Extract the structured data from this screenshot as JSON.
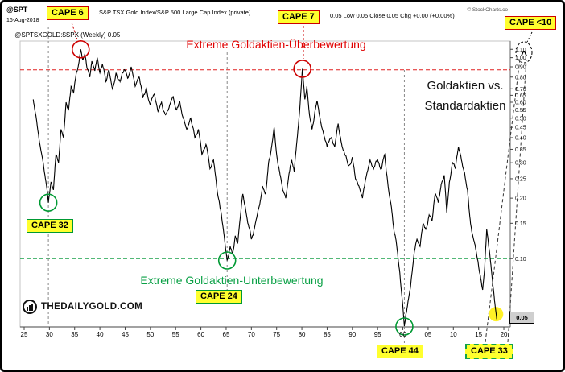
{
  "header": {
    "symbol_prefix": "@SPT",
    "title": "S&P TSX Gold Index/S&P 500 Large Cap Index (private)",
    "ohlc": "0.05 Low 0.05 Close 0.05 Chg +0.00 (+0.00%)",
    "date": "16-Aug-2018",
    "copyright": "© StockCharts.co",
    "legend_dash": "—",
    "legend_text": "@SPTSXGOLD:$SPX (Weekly) 0.05"
  },
  "annotations": {
    "overvaluation": "Extreme Goldaktien-Überbewertung",
    "undervaluation": "Extreme Goldaktien-Unterbewertung",
    "comparison_line1": "Goldaktien vs.",
    "comparison_line2": "Standardaktien",
    "watermark": "THEDAILYGOLD.COM"
  },
  "colors": {
    "line": "#000000",
    "overvaluation_line": "#e02020",
    "undervaluation_line": "#18a048",
    "highlight_yellow": "#ffff2e",
    "marker_red": "#cc0000",
    "marker_green": "#009933"
  },
  "chart_data": {
    "type": "line",
    "title": "S&P TSX Gold Index/S&P 500 Large Cap Index (private)",
    "symbol": "@SPTSXGOLD:$SPX",
    "timeframe": "Weekly",
    "y_scale": "log",
    "x_axis_years": [
      1925,
      1930,
      1935,
      1940,
      1945,
      1950,
      1955,
      1960,
      1965,
      1970,
      1975,
      1980,
      1985,
      1990,
      1995,
      2000,
      2005,
      2010,
      2015,
      2020
    ],
    "x_tick_labels": [
      "25",
      "30",
      "35",
      "40",
      "45",
      "50",
      "55",
      "60",
      "65",
      "70",
      "75",
      "80",
      "85",
      "90",
      "95",
      "00",
      "05",
      "10",
      "15",
      "20"
    ],
    "y_ticks": [
      1.1,
      1.0,
      0.9,
      0.8,
      0.7,
      0.65,
      0.6,
      0.55,
      0.5,
      0.45,
      0.4,
      0.35,
      0.3,
      0.25,
      0.2,
      0.15,
      0.1,
      0.05
    ],
    "last_value": "0.05",
    "hlines": [
      {
        "value": 0.87,
        "color": "#e02020",
        "style": "dashed"
      },
      {
        "value": 0.1,
        "color": "#18a048",
        "style": "dashed"
      }
    ],
    "markers": [
      {
        "type": "circle",
        "label": "CAPE 32",
        "year": 1929.8,
        "value": 0.19,
        "color": "#009933"
      },
      {
        "type": "circle",
        "label": "CAPE 6",
        "year": 1936.2,
        "value": 1.1,
        "color": "#cc0000"
      },
      {
        "type": "circle",
        "label": "CAPE 24",
        "year": 1965.2,
        "value": 0.098,
        "color": "#009933"
      },
      {
        "type": "circle",
        "label": "CAPE 7",
        "year": 1980.1,
        "value": 0.88,
        "color": "#cc0000"
      },
      {
        "type": "circle",
        "label": "CAPE 44",
        "year": 2000.3,
        "value": 0.046,
        "color": "#009933"
      },
      {
        "type": "highlight",
        "label": "CAPE 33",
        "year": 2018.45,
        "value": 0.053,
        "color": "#ffee00"
      },
      {
        "type": "arrow",
        "label": "CAPE <10",
        "color": "#000000"
      }
    ],
    "series": [
      {
        "name": "@SPTSXGOLD:$SPX",
        "color": "#000000",
        "points": [
          [
            1926.8,
            0.62
          ],
          [
            1927.5,
            0.48
          ],
          [
            1928.2,
            0.36
          ],
          [
            1929.0,
            0.27
          ],
          [
            1929.8,
            0.19
          ],
          [
            1930.3,
            0.24
          ],
          [
            1930.8,
            0.22
          ],
          [
            1931.3,
            0.33
          ],
          [
            1931.8,
            0.3
          ],
          [
            1932.3,
            0.44
          ],
          [
            1932.8,
            0.4
          ],
          [
            1933.3,
            0.6
          ],
          [
            1933.8,
            0.55
          ],
          [
            1934.3,
            0.72
          ],
          [
            1934.8,
            0.67
          ],
          [
            1935.3,
            0.83
          ],
          [
            1935.7,
            0.9
          ],
          [
            1936.2,
            1.1
          ],
          [
            1936.6,
            0.97
          ],
          [
            1937.0,
            1.04
          ],
          [
            1937.5,
            0.88
          ],
          [
            1938.0,
            0.8
          ],
          [
            1938.4,
            0.96
          ],
          [
            1939.0,
            0.86
          ],
          [
            1939.5,
            0.99
          ],
          [
            1940.0,
            0.84
          ],
          [
            1940.5,
            0.93
          ],
          [
            1941.2,
            0.76
          ],
          [
            1941.8,
            0.87
          ],
          [
            1942.5,
            0.7
          ],
          [
            1943.2,
            0.84
          ],
          [
            1944.0,
            0.76
          ],
          [
            1944.8,
            0.87
          ],
          [
            1945.5,
            0.79
          ],
          [
            1946.2,
            0.9
          ],
          [
            1947.0,
            0.72
          ],
          [
            1947.8,
            0.8
          ],
          [
            1948.5,
            0.63
          ],
          [
            1949.2,
            0.71
          ],
          [
            1950.0,
            0.58
          ],
          [
            1950.8,
            0.66
          ],
          [
            1951.5,
            0.54
          ],
          [
            1952.2,
            0.6
          ],
          [
            1953.0,
            0.52
          ],
          [
            1953.8,
            0.58
          ],
          [
            1954.5,
            0.64
          ],
          [
            1955.2,
            0.55
          ],
          [
            1955.8,
            0.61
          ],
          [
            1956.5,
            0.5
          ],
          [
            1957.2,
            0.44
          ],
          [
            1958.0,
            0.5
          ],
          [
            1958.8,
            0.4
          ],
          [
            1959.5,
            0.44
          ],
          [
            1960.2,
            0.33
          ],
          [
            1961.0,
            0.37
          ],
          [
            1961.8,
            0.28
          ],
          [
            1962.5,
            0.31
          ],
          [
            1963.2,
            0.22
          ],
          [
            1964.0,
            0.17
          ],
          [
            1964.6,
            0.13
          ],
          [
            1965.2,
            0.098
          ],
          [
            1965.8,
            0.115
          ],
          [
            1966.3,
            0.105
          ],
          [
            1966.8,
            0.13
          ],
          [
            1967.3,
            0.12
          ],
          [
            1967.8,
            0.16
          ],
          [
            1968.3,
            0.21
          ],
          [
            1968.8,
            0.18
          ],
          [
            1969.3,
            0.15
          ],
          [
            1970.0,
            0.125
          ],
          [
            1970.8,
            0.15
          ],
          [
            1971.5,
            0.18
          ],
          [
            1972.2,
            0.23
          ],
          [
            1972.8,
            0.21
          ],
          [
            1973.4,
            0.3
          ],
          [
            1974.0,
            0.36
          ],
          [
            1974.5,
            0.45
          ],
          [
            1975.0,
            0.33
          ],
          [
            1975.6,
            0.27
          ],
          [
            1976.2,
            0.22
          ],
          [
            1976.8,
            0.2
          ],
          [
            1977.4,
            0.26
          ],
          [
            1978.0,
            0.31
          ],
          [
            1978.5,
            0.27
          ],
          [
            1979.0,
            0.38
          ],
          [
            1979.5,
            0.52
          ],
          [
            1980.1,
            0.88
          ],
          [
            1980.6,
            0.62
          ],
          [
            1981.0,
            0.72
          ],
          [
            1981.5,
            0.52
          ],
          [
            1982.0,
            0.44
          ],
          [
            1982.5,
            0.52
          ],
          [
            1983.0,
            0.61
          ],
          [
            1983.6,
            0.5
          ],
          [
            1984.2,
            0.43
          ],
          [
            1985.0,
            0.36
          ],
          [
            1985.8,
            0.4
          ],
          [
            1986.5,
            0.36
          ],
          [
            1987.2,
            0.47
          ],
          [
            1987.8,
            0.38
          ],
          [
            1988.5,
            0.33
          ],
          [
            1989.2,
            0.29
          ],
          [
            1990.0,
            0.32
          ],
          [
            1990.6,
            0.25
          ],
          [
            1991.3,
            0.23
          ],
          [
            1992.0,
            0.2
          ],
          [
            1992.8,
            0.26
          ],
          [
            1993.5,
            0.31
          ],
          [
            1994.2,
            0.28
          ],
          [
            1995.0,
            0.31
          ],
          [
            1995.8,
            0.28
          ],
          [
            1996.4,
            0.33
          ],
          [
            1997.0,
            0.24
          ],
          [
            1997.6,
            0.19
          ],
          [
            1998.2,
            0.14
          ],
          [
            1998.8,
            0.115
          ],
          [
            1999.4,
            0.085
          ],
          [
            2000.3,
            0.046
          ],
          [
            2000.9,
            0.058
          ],
          [
            2001.5,
            0.072
          ],
          [
            2002.2,
            0.105
          ],
          [
            2002.8,
            0.125
          ],
          [
            2003.4,
            0.115
          ],
          [
            2004.0,
            0.15
          ],
          [
            2004.6,
            0.14
          ],
          [
            2005.2,
            0.165
          ],
          [
            2005.8,
            0.155
          ],
          [
            2006.4,
            0.21
          ],
          [
            2007.0,
            0.19
          ],
          [
            2007.6,
            0.235
          ],
          [
            2008.2,
            0.26
          ],
          [
            2008.7,
            0.17
          ],
          [
            2009.2,
            0.24
          ],
          [
            2009.8,
            0.3
          ],
          [
            2010.4,
            0.28
          ],
          [
            2011.0,
            0.36
          ],
          [
            2011.6,
            0.31
          ],
          [
            2012.2,
            0.27
          ],
          [
            2012.8,
            0.22
          ],
          [
            2013.4,
            0.15
          ],
          [
            2014.0,
            0.125
          ],
          [
            2014.6,
            0.105
          ],
          [
            2015.2,
            0.085
          ],
          [
            2015.8,
            0.07
          ],
          [
            2016.2,
            0.09
          ],
          [
            2016.6,
            0.14
          ],
          [
            2017.0,
            0.115
          ],
          [
            2017.5,
            0.09
          ],
          [
            2018.0,
            0.068
          ],
          [
            2018.6,
            0.05
          ]
        ]
      }
    ]
  }
}
